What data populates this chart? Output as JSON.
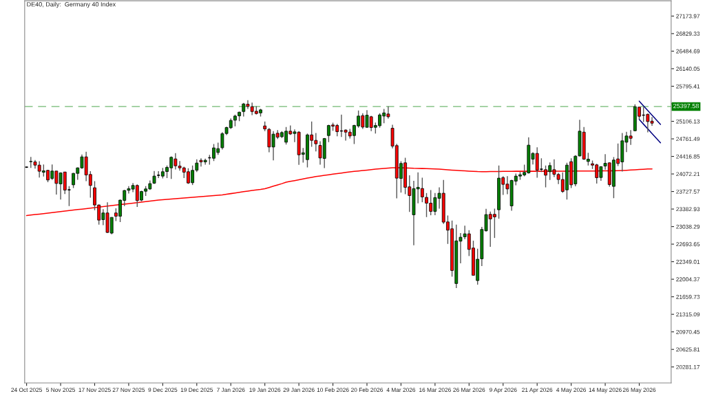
{
  "chart_data": {
    "type": "candlestick",
    "title": "DE40, Daily:  Germany 40 Index",
    "categories": [
      "24 Oct 2025",
      null,
      null,
      null,
      null,
      null,
      null,
      null,
      "5 Nov 2025",
      null,
      null,
      null,
      null,
      null,
      null,
      null,
      "17 Nov 2025",
      null,
      null,
      null,
      null,
      null,
      null,
      null,
      "27 Nov 2025",
      null,
      null,
      null,
      null,
      null,
      null,
      null,
      "9 Dec 2025",
      null,
      null,
      null,
      null,
      null,
      null,
      null,
      "19 Dec 2025",
      null,
      null,
      null,
      null,
      null,
      null,
      null,
      "7 Jan 2026",
      null,
      null,
      null,
      null,
      null,
      null,
      null,
      "19 Jan 2026",
      null,
      null,
      null,
      null,
      null,
      null,
      null,
      "29 Jan 2026",
      null,
      null,
      null,
      null,
      null,
      null,
      null,
      "10 Feb 2026",
      null,
      null,
      null,
      null,
      null,
      null,
      null,
      "20 Feb 2026",
      null,
      null,
      null,
      null,
      null,
      null,
      null,
      "4 Mar 2026",
      null,
      null,
      null,
      null,
      null,
      null,
      null,
      "16 Mar 2026",
      null,
      null,
      null,
      null,
      null,
      null,
      null,
      "26 Mar 2026",
      null,
      null,
      null,
      null,
      null,
      null,
      null,
      "9 Apr 2026",
      null,
      null,
      null,
      null,
      null,
      null,
      null,
      "21 Apr 2026",
      null,
      null,
      null,
      null,
      null,
      null,
      null,
      "4 May 2026",
      null,
      null,
      null,
      null,
      null,
      null,
      null,
      "14 May 2026",
      null,
      null,
      null,
      null,
      null,
      null,
      null,
      "26 May 2026",
      null,
      null,
      null,
      null,
      null,
      null,
      null
    ],
    "ohlc": [
      [
        24206,
        24214,
        24192,
        24206
      ],
      [
        24314,
        24408,
        24192,
        24318
      ],
      [
        24309,
        24345,
        24178,
        24246
      ],
      [
        24246,
        24323,
        24003,
        24125
      ],
      [
        24106,
        24260,
        24021,
        24134
      ],
      [
        24143,
        24152,
        23909,
        23954
      ],
      [
        23985,
        24260,
        23954,
        24129
      ],
      [
        24129,
        24129,
        23666,
        23886
      ],
      [
        23877,
        24102,
        23571,
        24093
      ],
      [
        24111,
        24111,
        23679,
        23756
      ],
      [
        23760,
        23832,
        23440,
        23760
      ],
      [
        23859,
        24093,
        23796,
        24084
      ],
      [
        24084,
        24201,
        23958,
        24192
      ],
      [
        24192,
        24453,
        24174,
        24408
      ],
      [
        24408,
        24507,
        23931,
        24053
      ],
      [
        24062,
        24125,
        23607,
        23846
      ],
      [
        23801,
        23931,
        23360,
        23463
      ],
      [
        23463,
        23472,
        23076,
        23166
      ],
      [
        23175,
        23382,
        23067,
        23306
      ],
      [
        23306,
        23517,
        22910,
        22923
      ],
      [
        22910,
        23220,
        22887,
        23220
      ],
      [
        23306,
        23396,
        23148,
        23243
      ],
      [
        23243,
        23571,
        23126,
        23558
      ],
      [
        23553,
        23760,
        23440,
        23747
      ],
      [
        23751,
        23832,
        23688,
        23783
      ],
      [
        23774,
        23895,
        23715,
        23846
      ],
      [
        23846,
        23868,
        23423,
        23549
      ],
      [
        23558,
        23742,
        23535,
        23729
      ],
      [
        23733,
        23832,
        23639,
        23778
      ],
      [
        23778,
        23945,
        23760,
        23882
      ],
      [
        23891,
        24129,
        23877,
        24030
      ],
      [
        24048,
        24125,
        23990,
        24048
      ],
      [
        24030,
        24192,
        23985,
        24116
      ],
      [
        24120,
        24237,
        23990,
        24201
      ],
      [
        24192,
        24417,
        23976,
        24399
      ],
      [
        24368,
        24480,
        24161,
        24233
      ],
      [
        24228,
        24327,
        24138,
        24192
      ],
      [
        24192,
        24215,
        23990,
        24107
      ],
      [
        24116,
        24183,
        23877,
        23895
      ],
      [
        23900,
        24237,
        23855,
        24143
      ],
      [
        24147,
        24359,
        24111,
        24287
      ],
      [
        24341,
        24381,
        24219,
        24309
      ],
      [
        24309,
        24372,
        24255,
        24341
      ],
      [
        24390,
        24449,
        24255,
        24390
      ],
      [
        24381,
        24660,
        24327,
        24584
      ],
      [
        24494,
        24687,
        24449,
        24570
      ],
      [
        24588,
        24894,
        24552,
        24863
      ],
      [
        24867,
        25002,
        24836,
        24984
      ],
      [
        24980,
        25164,
        24957,
        25124
      ],
      [
        25128,
        25236,
        25007,
        25209
      ],
      [
        25214,
        25295,
        25110,
        25286
      ],
      [
        25299,
        25466,
        25200,
        25448
      ],
      [
        25443,
        25520,
        25349,
        25398
      ],
      [
        25394,
        25475,
        25227,
        25299
      ],
      [
        25304,
        25403,
        25241,
        25259
      ],
      [
        25272,
        25353,
        25200,
        25331
      ],
      [
        25016,
        25101,
        24912,
        24957
      ],
      [
        24948,
        24975,
        24498,
        24602
      ],
      [
        24602,
        24912,
        24341,
        24854
      ],
      [
        24872,
        24935,
        24759,
        24795
      ],
      [
        24804,
        24912,
        24777,
        24885
      ],
      [
        24696,
        24993,
        24651,
        24912
      ],
      [
        24912,
        25025,
        24840,
        24858
      ],
      [
        24867,
        24948,
        24696,
        24899
      ],
      [
        24894,
        24912,
        24251,
        24449
      ],
      [
        24458,
        24584,
        24296,
        24489
      ],
      [
        24354,
        24867,
        24201,
        24840
      ],
      [
        24840,
        25101,
        24606,
        24732
      ],
      [
        24732,
        24876,
        24516,
        24665
      ],
      [
        24633,
        24714,
        24255,
        24386
      ],
      [
        24377,
        24777,
        24188,
        24768
      ],
      [
        24827,
        25038,
        24696,
        25025
      ],
      [
        25034,
        25079,
        24921,
        25011
      ],
      [
        25025,
        25056,
        24813,
        24903
      ],
      [
        24917,
        25236,
        24800,
        24917
      ],
      [
        24935,
        24948,
        24728,
        24894
      ],
      [
        24894,
        24957,
        24768,
        24818
      ],
      [
        24827,
        25038,
        24660,
        25025
      ],
      [
        25016,
        25317,
        24980,
        25209
      ],
      [
        25218,
        25263,
        24957,
        24993
      ],
      [
        24989,
        25326,
        24980,
        25227
      ],
      [
        25196,
        25214,
        24912,
        24984
      ],
      [
        24989,
        25083,
        24867,
        25025
      ],
      [
        25020,
        25263,
        24980,
        25232
      ],
      [
        25209,
        25349,
        25070,
        25272
      ],
      [
        25250,
        25398,
        25160,
        25196
      ],
      [
        24971,
        25038,
        24575,
        24620
      ],
      [
        24629,
        24665,
        23594,
        23990
      ],
      [
        23985,
        24323,
        23706,
        24278
      ],
      [
        24291,
        24390,
        23675,
        23810
      ],
      [
        23819,
        24044,
        23328,
        23648
      ],
      [
        23270,
        23936,
        22671,
        23783
      ],
      [
        23778,
        24102,
        23495,
        23810
      ],
      [
        23787,
        23999,
        23517,
        23621
      ],
      [
        23612,
        23697,
        23225,
        23499
      ],
      [
        23499,
        23756,
        23261,
        23337
      ],
      [
        23337,
        23697,
        23261,
        23607
      ],
      [
        23594,
        23810,
        23391,
        23693
      ],
      [
        23693,
        23954,
        23090,
        23126
      ],
      [
        23130,
        23256,
        22698,
        22968
      ],
      [
        22995,
        23157,
        22055,
        22176
      ],
      [
        21920,
        23076,
        21830,
        22757
      ],
      [
        22752,
        22910,
        22316,
        22829
      ],
      [
        22838,
        23058,
        22788,
        22896
      ],
      [
        22896,
        22968,
        22460,
        22590
      ],
      [
        22617,
        22761,
        22077,
        22082
      ],
      [
        21978,
        22604,
        21897,
        22397
      ],
      [
        22406,
        23031,
        22262,
        22982
      ],
      [
        22955,
        23387,
        22941,
        23274
      ],
      [
        23279,
        23333,
        22640,
        23189
      ],
      [
        23279,
        23391,
        22815,
        23229
      ],
      [
        23369,
        24237,
        23193,
        23990
      ],
      [
        23999,
        24030,
        23661,
        23868
      ],
      [
        23873,
        24030,
        23675,
        23778
      ],
      [
        23445,
        23958,
        23351,
        23945
      ],
      [
        23931,
        24080,
        23850,
        24030
      ],
      [
        24030,
        24111,
        23958,
        24057
      ],
      [
        24053,
        24255,
        24026,
        24102
      ],
      [
        24093,
        24791,
        24080,
        24638
      ],
      [
        24363,
        24498,
        24260,
        24476
      ],
      [
        24476,
        24597,
        23999,
        24147
      ],
      [
        24165,
        24381,
        24111,
        24165
      ],
      [
        24156,
        24237,
        23810,
        24048
      ],
      [
        24116,
        24300,
        23954,
        24237
      ],
      [
        24156,
        24359,
        24012,
        24066
      ],
      [
        24062,
        24093,
        23873,
        23963
      ],
      [
        23963,
        24102,
        23702,
        23729
      ],
      [
        23760,
        24291,
        23571,
        24246
      ],
      [
        24314,
        24381,
        23796,
        23859
      ],
      [
        23877,
        24440,
        23828,
        24422
      ],
      [
        24426,
        25137,
        24417,
        24912
      ],
      [
        24894,
        24993,
        24350,
        24363
      ],
      [
        24318,
        24489,
        24237,
        24363
      ],
      [
        24273,
        24336,
        24170,
        24246
      ],
      [
        24251,
        24273,
        23882,
        23999
      ],
      [
        24003,
        24224,
        23936,
        24215
      ],
      [
        24228,
        24462,
        24156,
        24282
      ],
      [
        24291,
        24300,
        23823,
        23864
      ],
      [
        23828,
        24404,
        23598,
        24345
      ],
      [
        24368,
        24669,
        24228,
        24278
      ],
      [
        24309,
        24876,
        24120,
        24723
      ],
      [
        24696,
        24899,
        24503,
        24818
      ],
      [
        24818,
        24935,
        24642,
        24773
      ],
      [
        24921,
        25439,
        24912,
        25394
      ],
      [
        25385,
        25394,
        25146,
        25205
      ],
      [
        25227,
        25385,
        25092,
        25227
      ],
      [
        25245,
        25259,
        24890,
        25101
      ],
      [
        25110,
        25191,
        25017,
        25070
      ],
      null,
      null,
      null,
      null
    ],
    "colors": [
      "#000000",
      "#008000",
      "#ff0000",
      "#ff0000",
      "#008000",
      "#ff0000",
      "#008000",
      "#ff0000",
      "#008000",
      "#ff0000",
      "#000000",
      "#008000",
      "#008000",
      "#008000",
      "#ff0000",
      "#ff0000",
      "#ff0000",
      "#ff0000",
      "#008000",
      "#ff0000",
      "#008000",
      "#ff0000",
      "#008000",
      "#008000",
      "#008000",
      "#008000",
      "#ff0000",
      "#008000",
      "#008000",
      "#008000",
      "#008000",
      "#000000",
      "#008000",
      "#008000",
      "#008000",
      "#ff0000",
      "#ff0000",
      "#ff0000",
      "#ff0000",
      "#008000",
      "#008000",
      "#ff0000",
      "#008000",
      "#000000",
      "#008000",
      "#008000",
      "#008000",
      "#008000",
      "#008000",
      "#008000",
      "#008000",
      "#008000",
      "#ff0000",
      "#ff0000",
      "#ff0000",
      "#008000",
      "#ff0000",
      "#ff0000",
      "#008000",
      "#ff0000",
      "#008000",
      "#008000",
      "#ff0000",
      "#008000",
      "#ff0000",
      "#008000",
      "#008000",
      "#ff0000",
      "#ff0000",
      "#ff0000",
      "#008000",
      "#008000",
      "#ff0000",
      "#ff0000",
      "#000000",
      "#ff0000",
      "#ff0000",
      "#008000",
      "#008000",
      "#ff0000",
      "#008000",
      "#ff0000",
      "#008000",
      "#008000",
      "#008000",
      "#ff0000",
      "#ff0000",
      "#ff0000",
      "#008000",
      "#ff0000",
      "#ff0000",
      "#008000",
      "#008000",
      "#ff0000",
      "#ff0000",
      "#ff0000",
      "#008000",
      "#008000",
      "#ff0000",
      "#ff0000",
      "#ff0000",
      "#008000",
      "#008000",
      "#008000",
      "#ff0000",
      "#ff0000",
      "#008000",
      "#008000",
      "#008000",
      "#ff0000",
      "#ff0000",
      "#008000",
      "#ff0000",
      "#ff0000",
      "#008000",
      "#008000",
      "#008000",
      "#008000",
      "#008000",
      "#008000",
      "#ff0000",
      "#000000",
      "#ff0000",
      "#008000",
      "#ff0000",
      "#ff0000",
      "#ff0000",
      "#008000",
      "#ff0000",
      "#008000",
      "#008000",
      "#ff0000",
      "#008000",
      "#ff0000",
      "#ff0000",
      "#008000",
      "#008000",
      "#ff0000",
      "#008000",
      "#ff0000",
      "#008000",
      "#008000",
      "#ff0000",
      "#008000",
      "#ff0000",
      "#000000",
      "#ff0000",
      "#ff0000",
      null,
      null,
      null,
      null
    ],
    "series": [
      {
        "type": "line",
        "color": "#ff0000",
        "values": [
          23255,
          23265,
          23275,
          23284,
          23294,
          23304,
          23314,
          23324,
          23333,
          23343,
          23353,
          23363,
          23373,
          23382,
          23392,
          23402,
          23412,
          23422,
          23431,
          23441,
          23451,
          23461,
          23471,
          23480,
          23490,
          23500,
          23510,
          23520,
          23529,
          23539,
          23549,
          23560,
          23567,
          23573,
          23580,
          23587,
          23593,
          23600,
          23607,
          23614,
          23620,
          23627,
          23634,
          23640,
          23647,
          23654,
          23660,
          23673,
          23686,
          23699,
          23712,
          23725,
          23736,
          23747,
          23758,
          23769,
          23782,
          23807,
          23832,
          23857,
          23882,
          23910,
          23926,
          23942,
          23958,
          23974,
          23990,
          24006,
          24022,
          24033,
          24045,
          24056,
          24068,
          24079,
          24090,
          24102,
          24113,
          24122,
          24131,
          24140,
          24148,
          24157,
          24166,
          24174,
          24182,
          24188,
          24194,
          24195,
          24193,
          24190,
          24187,
          24183,
          24181,
          24179,
          24177,
          24174,
          24172,
          24166,
          24160,
          24154,
          24148,
          24142,
          24137,
          24133,
          24128,
          24123,
          24119,
          24118,
          24118,
          24119,
          24120,
          24121,
          24122,
          24123,
          24124,
          24125,
          24125,
          24125,
          24125,
          24125,
          24125,
          24125,
          24125,
          24126,
          24126,
          24127,
          24127,
          24128,
          24128,
          24129,
          24129,
          24130,
          24130,
          24131,
          24131,
          24132,
          24133,
          24134,
          24135,
          24136,
          24140,
          24145,
          24149,
          24154,
          24160,
          24165,
          24170,
          24172,
          null,
          null,
          null,
          null
        ]
      },
      {
        "type": "line",
        "color": "#000080",
        "values": [
          null,
          null,
          null,
          null,
          null,
          null,
          null,
          null,
          null,
          null,
          null,
          null,
          null,
          null,
          null,
          null,
          null,
          null,
          null,
          null,
          null,
          null,
          null,
          null,
          null,
          null,
          null,
          null,
          null,
          null,
          null,
          null,
          null,
          null,
          null,
          null,
          null,
          null,
          null,
          null,
          null,
          null,
          null,
          null,
          null,
          null,
          null,
          null,
          null,
          null,
          null,
          null,
          null,
          null,
          null,
          null,
          null,
          null,
          null,
          null,
          null,
          null,
          null,
          null,
          null,
          null,
          null,
          null,
          null,
          null,
          null,
          null,
          null,
          null,
          null,
          null,
          null,
          null,
          null,
          null,
          null,
          null,
          null,
          null,
          null,
          null,
          null,
          null,
          null,
          null,
          null,
          null,
          null,
          null,
          null,
          null,
          null,
          null,
          null,
          null,
          null,
          null,
          null,
          null,
          null,
          null,
          null,
          null,
          null,
          null,
          null,
          null,
          null,
          null,
          null,
          null,
          null,
          null,
          null,
          null,
          null,
          null,
          null,
          null,
          null,
          null,
          null,
          null,
          null,
          null,
          null,
          null,
          null,
          null,
          null,
          null,
          null,
          null,
          null,
          null,
          null,
          null,
          null,
          null,
          25502,
          25411,
          25319,
          25228,
          25136,
          25045,
          null,
          null
        ]
      },
      {
        "type": "line",
        "color": "#000080",
        "values": [
          null,
          null,
          null,
          null,
          null,
          null,
          null,
          null,
          null,
          null,
          null,
          null,
          null,
          null,
          null,
          null,
          null,
          null,
          null,
          null,
          null,
          null,
          null,
          null,
          null,
          null,
          null,
          null,
          null,
          null,
          null,
          null,
          null,
          null,
          null,
          null,
          null,
          null,
          null,
          null,
          null,
          null,
          null,
          null,
          null,
          null,
          null,
          null,
          null,
          null,
          null,
          null,
          null,
          null,
          null,
          null,
          null,
          null,
          null,
          null,
          null,
          null,
          null,
          null,
          null,
          null,
          null,
          null,
          null,
          null,
          null,
          null,
          null,
          null,
          null,
          null,
          null,
          null,
          null,
          null,
          null,
          null,
          null,
          null,
          null,
          null,
          null,
          null,
          null,
          null,
          null,
          null,
          null,
          null,
          null,
          null,
          null,
          null,
          null,
          null,
          null,
          null,
          null,
          null,
          null,
          null,
          null,
          null,
          null,
          null,
          null,
          null,
          null,
          null,
          null,
          null,
          null,
          null,
          null,
          null,
          null,
          null,
          null,
          null,
          null,
          null,
          null,
          null,
          null,
          null,
          null,
          null,
          null,
          null,
          null,
          null,
          null,
          null,
          null,
          null,
          null,
          null,
          null,
          null,
          25142,
          25050,
          24959,
          24867,
          24776,
          24684,
          null,
          null
        ]
      }
    ],
    "ylim": [
      19967,
      27474
    ],
    "yticks": [
      20281.17,
      20625.81,
      20970.45,
      21315.09,
      21659.73,
      22004.37,
      22349.01,
      22693.65,
      23038.29,
      23382.93,
      23727.57,
      24072.21,
      24416.85,
      24761.49,
      25106.13,
      {
        "value": 25450.77,
        "label": null
      },
      25795.41,
      26140.05,
      26484.69,
      26829.33,
      27173.97
    ],
    "ref_lines": [
      {
        "axis": "y",
        "value": 25397.58,
        "label": "25397.58",
        "color": "#99cc99",
        "line_style": "dashed"
      }
    ],
    "grid": false,
    "legend": false
  }
}
